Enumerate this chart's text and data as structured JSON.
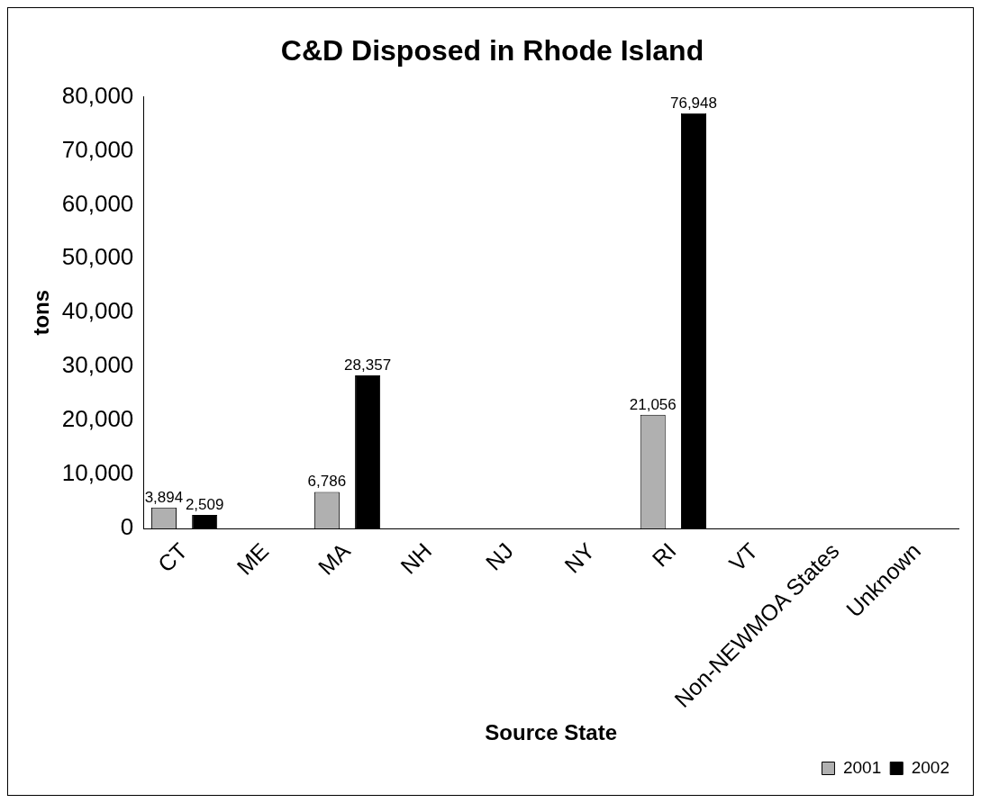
{
  "chart_data": {
    "type": "bar",
    "title": "C&D Disposed in Rhode Island",
    "xlabel": "Source State",
    "ylabel": "tons",
    "categories": [
      "CT",
      "ME",
      "MA",
      "NH",
      "NJ",
      "NY",
      "RI",
      "VT",
      "Non-NEWMOA States",
      "Unknown"
    ],
    "series": [
      {
        "name": "2001",
        "color": "#b0b0b0",
        "values": [
          3894,
          null,
          6786,
          null,
          null,
          null,
          21056,
          null,
          null,
          null
        ],
        "value_labels": [
          "3,894",
          null,
          "6,786",
          null,
          null,
          null,
          "21,056",
          null,
          null,
          null
        ]
      },
      {
        "name": "2002",
        "color": "#000000",
        "values": [
          2509,
          null,
          28357,
          null,
          null,
          null,
          76948,
          null,
          null,
          null
        ],
        "value_labels": [
          "2,509",
          null,
          "28,357",
          null,
          null,
          null,
          "76,948",
          null,
          null,
          null
        ]
      }
    ],
    "ylim": [
      0,
      80000
    ],
    "yticks": [
      {
        "value": 0,
        "label": "0"
      },
      {
        "value": 10000,
        "label": "10,000"
      },
      {
        "value": 20000,
        "label": "20,000"
      },
      {
        "value": 30000,
        "label": "30,000"
      },
      {
        "value": 40000,
        "label": "40,000"
      },
      {
        "value": 50000,
        "label": "50,000"
      },
      {
        "value": 60000,
        "label": "60,000"
      },
      {
        "value": 70000,
        "label": "70,000"
      },
      {
        "value": 80000,
        "label": "80,000"
      }
    ],
    "grid": false,
    "legend": "bottom right"
  }
}
